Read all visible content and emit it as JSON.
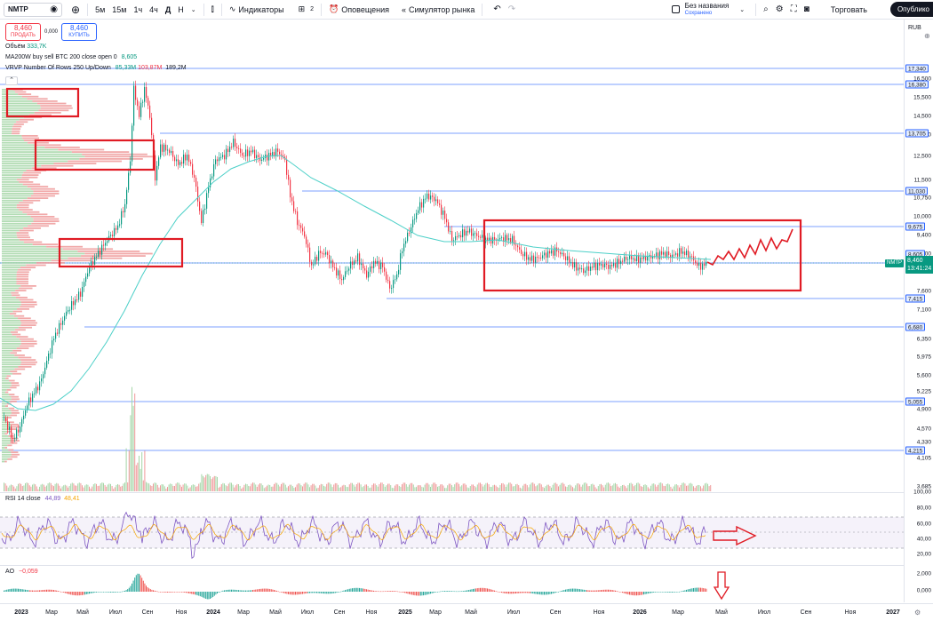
{
  "toolbar": {
    "symbol": "NMTP",
    "intervals": [
      "5м",
      "15м",
      "1ч",
      "4ч",
      "Д",
      "Н"
    ],
    "active_interval": "Д",
    "indicators_label": "Индикаторы",
    "layouts_count": "2",
    "alerts_label": "Оповещения",
    "replay_label": "Симулятор рынка",
    "layout_name": "Без названия",
    "layout_status": "Сохранено",
    "trade_label": "Торговать",
    "publish_label": "Опублико"
  },
  "trade": {
    "sell_price": "8,460",
    "sell_label": "ПРОДАТЬ",
    "spread": "0,000",
    "buy_price": "8,460",
    "buy_label": "КУПИТЬ"
  },
  "legend": {
    "volume_label": "Объём",
    "volume_value": "333,7K",
    "ma_label": "MA200W buy sell BTC 200 close open 0",
    "ma_value": "8,605",
    "vrvp_label": "VRVP Number Of Rows 250 Up/Down",
    "vrvp_up": "85,33M",
    "vrvp_down": "103,87M",
    "vrvp_total": "189,2M"
  },
  "price_scale": {
    "currency": "RUB",
    "labels": [
      "16,500",
      "15,500",
      "14,500",
      "13,500",
      "12,500",
      "11,500",
      "10,750",
      "10,000",
      "9,400",
      "8,900",
      "8,460",
      "7,600",
      "7,100",
      "6,350",
      "5,975",
      "5,600",
      "5,225",
      "4,900",
      "4,570",
      "4,330",
      "4,105",
      "3,685"
    ],
    "tags": [
      "17,340",
      "16,380",
      "13,705",
      "11,030",
      "9,675",
      "8,605",
      "7,415",
      "6,680",
      "5,055",
      "4,215"
    ],
    "current_price": "8,460",
    "countdown": "13:41:24"
  },
  "rsi": {
    "label": "RSI 14 close",
    "value": "44,89",
    "ma_value": "48,41",
    "scale": [
      "100,00",
      "80,00",
      "60,00",
      "40,00",
      "20,00"
    ]
  },
  "ao": {
    "label": "AO",
    "value": "−0,059",
    "scale": [
      "2,000",
      "0,000"
    ]
  },
  "time_axis": {
    "labels": [
      {
        "text": "2023",
        "bold": true
      },
      {
        "text": "Мар",
        "bold": false
      },
      {
        "text": "Май",
        "bold": false
      },
      {
        "text": "Июл",
        "bold": false
      },
      {
        "text": "Сен",
        "bold": false
      },
      {
        "text": "Ноя",
        "bold": false
      },
      {
        "text": "2024",
        "bold": true
      },
      {
        "text": "Мар",
        "bold": false
      },
      {
        "text": "Май",
        "bold": false
      },
      {
        "text": "Июл",
        "bold": false
      },
      {
        "text": "Сен",
        "bold": false
      },
      {
        "text": "Ноя",
        "bold": false
      },
      {
        "text": "2025",
        "bold": true
      },
      {
        "text": "Мар",
        "bold": false
      },
      {
        "text": "Май",
        "bold": false
      },
      {
        "text": "Июл",
        "bold": false
      },
      {
        "text": "Сен",
        "bold": false
      },
      {
        "text": "Ноя",
        "bold": false
      },
      {
        "text": "2026",
        "bold": true
      },
      {
        "text": "Мар",
        "bold": false
      },
      {
        "text": "Май",
        "bold": false
      },
      {
        "text": "Июл",
        "bold": false
      },
      {
        "text": "Сен",
        "bold": false
      },
      {
        "text": "Ноя",
        "bold": false
      },
      {
        "text": "2027",
        "bold": true
      }
    ]
  },
  "colors": {
    "up": "#089981",
    "down": "#f23645",
    "ma": "#4dd0c8",
    "levels": "#2962ff",
    "annotation": "#e01b24"
  }
}
